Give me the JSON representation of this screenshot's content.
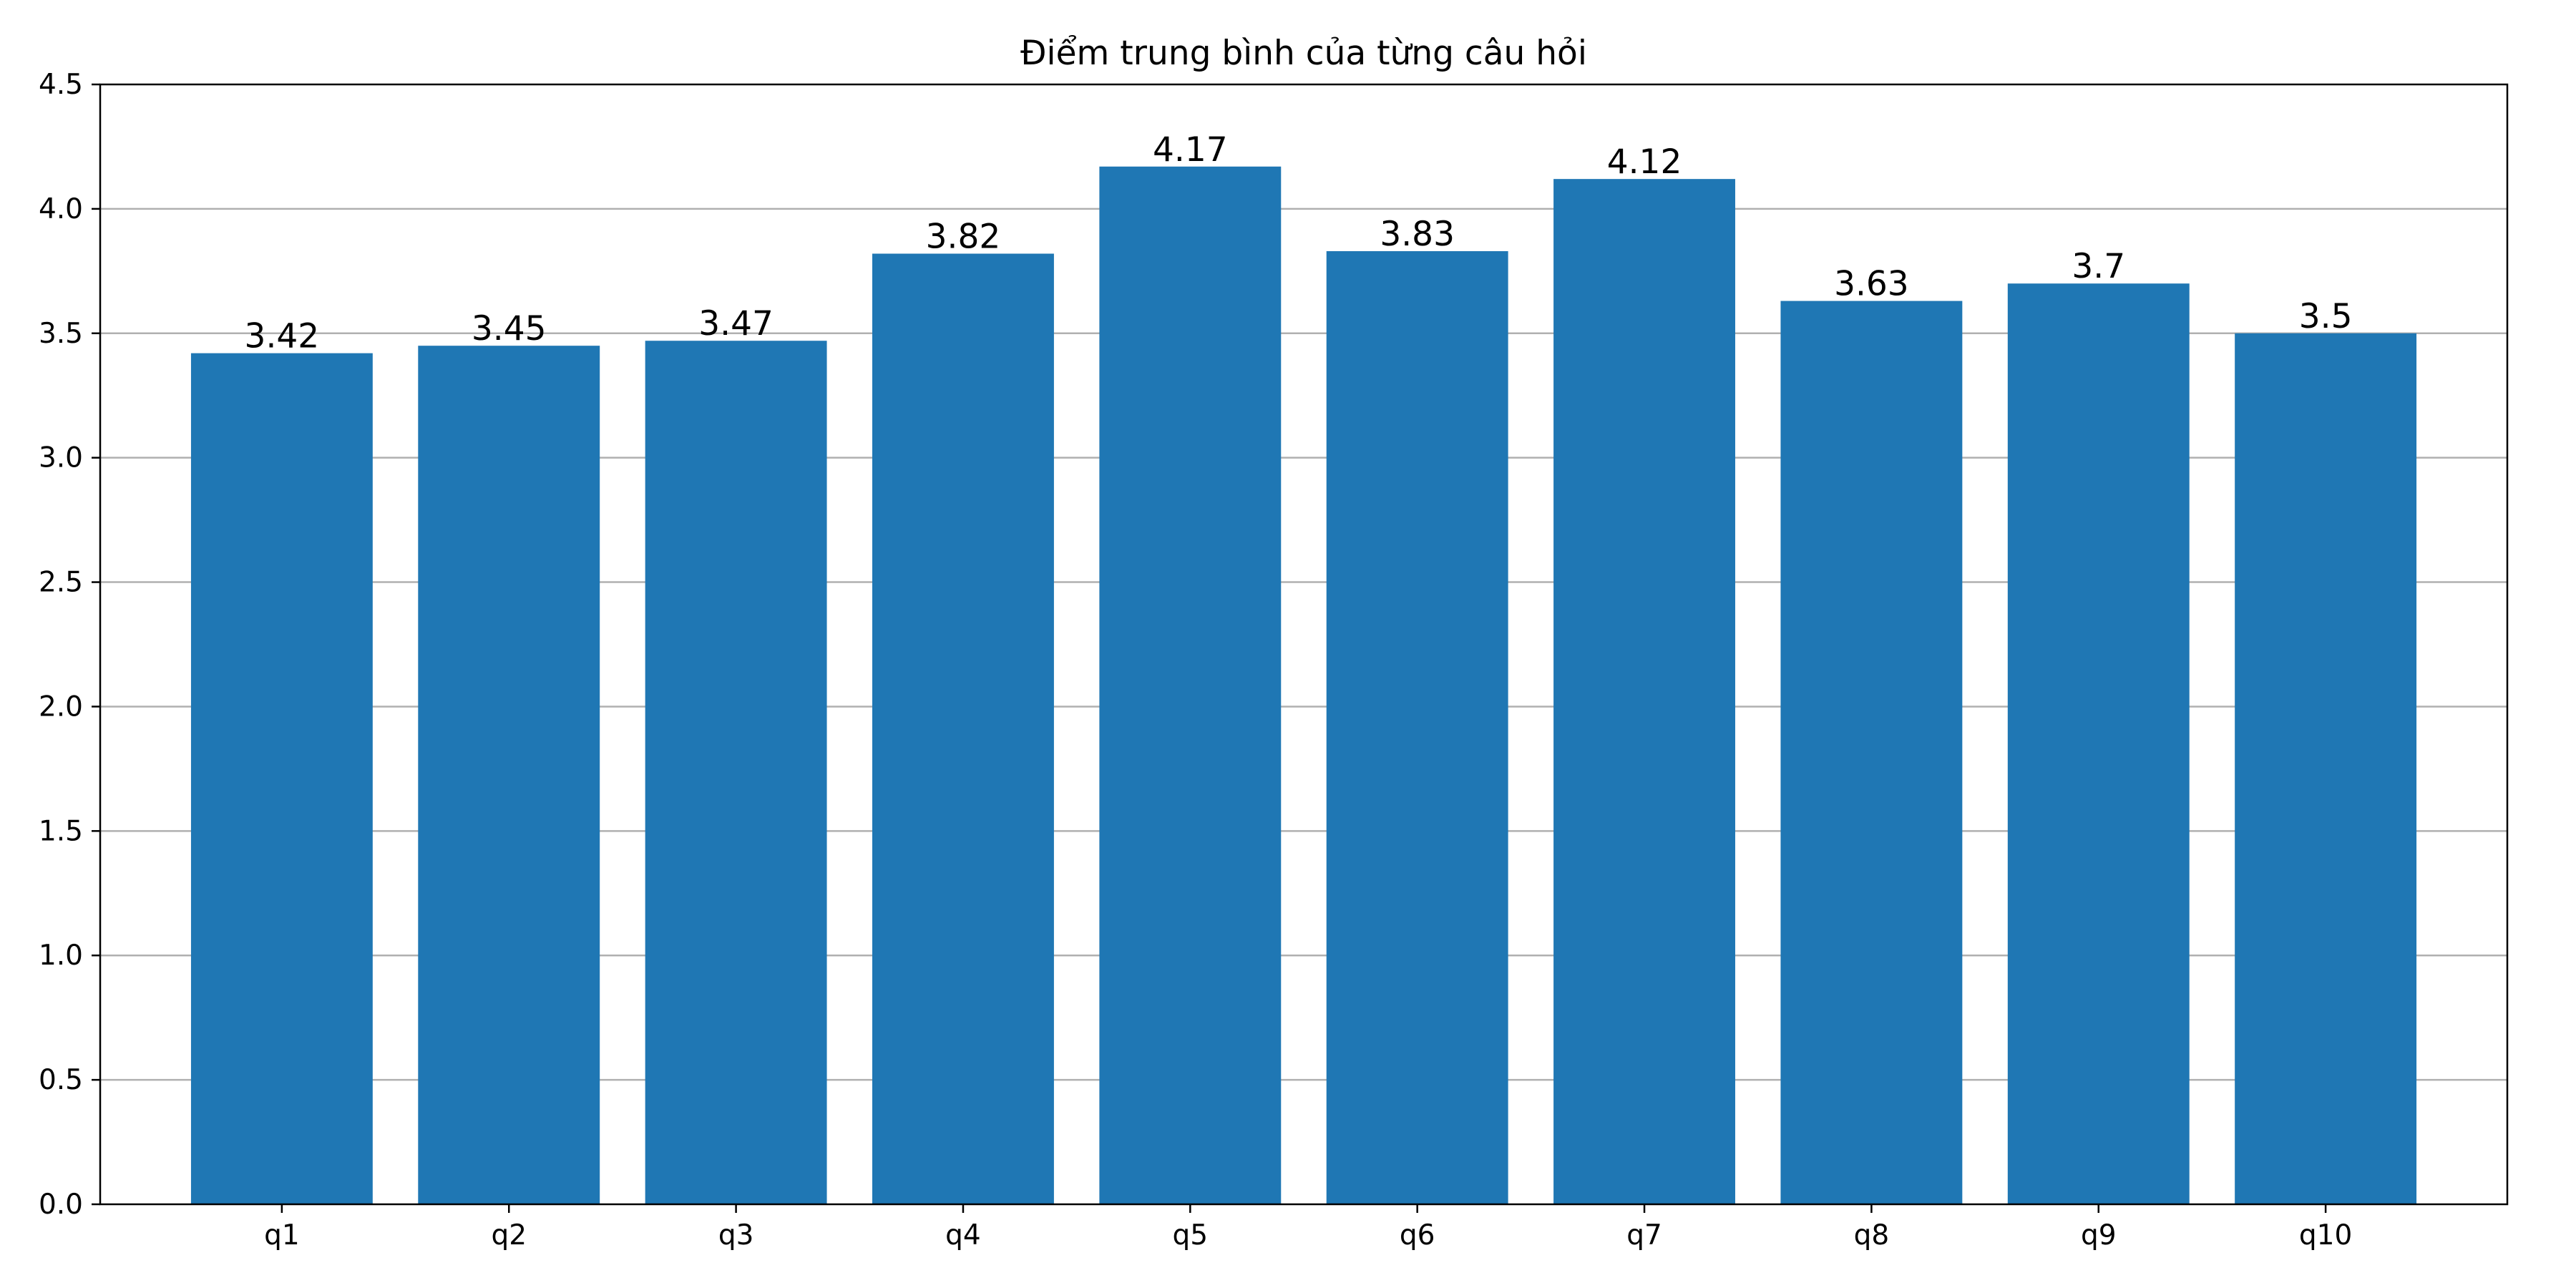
{
  "chart_data": {
    "type": "bar",
    "title": "Điểm trung bình của từng câu hỏi",
    "xlabel": "",
    "ylabel": "",
    "categories": [
      "q1",
      "q2",
      "q3",
      "q4",
      "q5",
      "q6",
      "q7",
      "q8",
      "q9",
      "q10"
    ],
    "values": [
      3.42,
      3.45,
      3.47,
      3.82,
      4.17,
      3.83,
      4.12,
      3.63,
      3.7,
      3.5
    ],
    "data_labels": [
      "3.42",
      "3.45",
      "3.47",
      "3.82",
      "4.17",
      "3.83",
      "4.12",
      "3.63",
      "3.7",
      "3.5"
    ],
    "ylim": [
      0,
      4.5
    ],
    "yticks": [
      "0.0",
      "0.5",
      "1.0",
      "1.5",
      "2.0",
      "2.5",
      "3.0",
      "3.5",
      "4.0",
      "4.5"
    ],
    "grid": "y",
    "legend": "none",
    "bar_color": "#1f77b4"
  }
}
